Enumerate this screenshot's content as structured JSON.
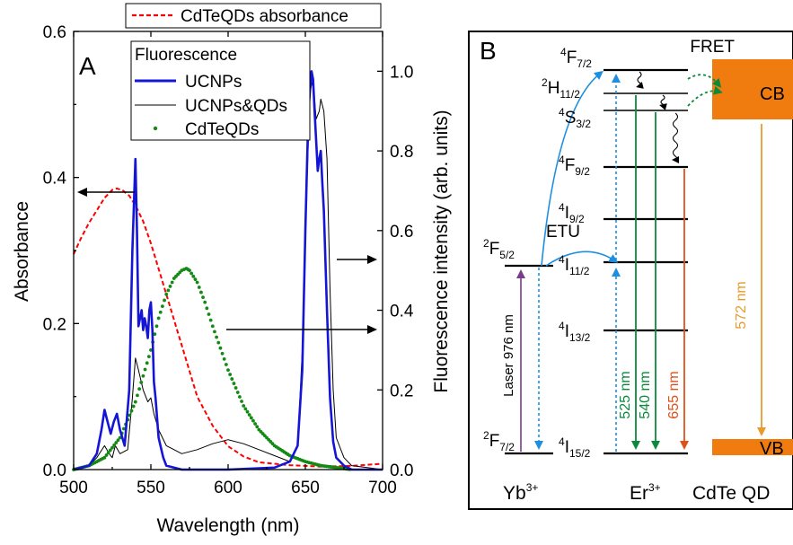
{
  "chart_data": [
    {
      "panel": "A",
      "type": "line",
      "xlabel": "Wavelength (nm)",
      "ylabel_left": "Absorbance",
      "ylabel_right": "Fluorescence intensity (arb. units)",
      "xlim": [
        500,
        700
      ],
      "ylim_left": [
        0,
        0.6
      ],
      "ylim_right": [
        0,
        1.1
      ],
      "x_ticks": [
        "500",
        "550",
        "600",
        "650",
        "700"
      ],
      "yleft_ticks": [
        "0.0",
        "0.2",
        "0.4",
        "0.6"
      ],
      "yright_ticks": [
        "0.0",
        "0.2",
        "0.4",
        "0.6",
        "0.8",
        "1.0"
      ],
      "legend_top": "CdTeQDs absorbance",
      "legend_title": "Fluorescence",
      "series": [
        {
          "name": "CdTeQDs absorbance",
          "axis": "left",
          "color": "#ff0000",
          "style": "dashed",
          "x": [
            500,
            505,
            510,
            515,
            520,
            525,
            528,
            532,
            536,
            540,
            545,
            550,
            555,
            560,
            565,
            570,
            575,
            580,
            590,
            600,
            610,
            620,
            640,
            660,
            680,
            700
          ],
          "y": [
            0.295,
            0.318,
            0.338,
            0.355,
            0.372,
            0.383,
            0.385,
            0.382,
            0.375,
            0.362,
            0.34,
            0.31,
            0.275,
            0.24,
            0.205,
            0.17,
            0.135,
            0.1,
            0.06,
            0.032,
            0.018,
            0.01,
            0.006,
            0.004,
            0.005,
            0.008
          ]
        },
        {
          "name": "UCNPs",
          "axis": "right",
          "color": "#1515d6",
          "style": "solid",
          "x": [
            500,
            510,
            515,
            518,
            520,
            522,
            524,
            526,
            528,
            530,
            533,
            536,
            538,
            540,
            541,
            542,
            544,
            545,
            546,
            547,
            548,
            549,
            550,
            551,
            552,
            553,
            555,
            558,
            560,
            570,
            600,
            630,
            640,
            645,
            648,
            650,
            652,
            654,
            655,
            656,
            658,
            659,
            660,
            661,
            662,
            664,
            666,
            668,
            670,
            675,
            680,
            690,
            700
          ],
          "y": [
            0,
            0.01,
            0.04,
            0.1,
            0.15,
            0.12,
            0.09,
            0.12,
            0.14,
            0.1,
            0.06,
            0.2,
            0.55,
            0.78,
            0.6,
            0.36,
            0.4,
            0.35,
            0.38,
            0.36,
            0.33,
            0.4,
            0.42,
            0.35,
            0.22,
            0.18,
            0.08,
            0.03,
            0.01,
            0,
            0,
            0.005,
            0.02,
            0.06,
            0.25,
            0.6,
            0.9,
            1.0,
            0.98,
            0.9,
            0.75,
            0.78,
            0.8,
            0.72,
            0.65,
            0.4,
            0.18,
            0.07,
            0.03,
            0.01,
            0,
            0,
            0
          ]
        },
        {
          "name": "UCNPs&QDs",
          "axis": "right",
          "color": "#000000",
          "style": "solid",
          "x": [
            500,
            510,
            515,
            520,
            523,
            525,
            527,
            530,
            535,
            538,
            540,
            542,
            545,
            548,
            550,
            552,
            555,
            560,
            565,
            570,
            580,
            590,
            600,
            610,
            620,
            630,
            640,
            645,
            648,
            650,
            653,
            655,
            657,
            659,
            660,
            662,
            664,
            666,
            668,
            670,
            675,
            680,
            690,
            700
          ],
          "y": [
            0,
            0.01,
            0.03,
            0.06,
            0.04,
            0.03,
            0.06,
            0.04,
            0.05,
            0.18,
            0.28,
            0.25,
            0.2,
            0.17,
            0.18,
            0.14,
            0.1,
            0.06,
            0.05,
            0.04,
            0.05,
            0.065,
            0.075,
            0.065,
            0.05,
            0.035,
            0.02,
            0.06,
            0.3,
            0.6,
            0.95,
            0.98,
            0.88,
            0.9,
            0.93,
            0.9,
            0.78,
            0.45,
            0.2,
            0.08,
            0.03,
            0.01,
            0.005,
            0
          ]
        },
        {
          "name": "CdTeQDs",
          "axis": "right",
          "color": "#138a13",
          "style": "dotted",
          "x": [
            500,
            510,
            520,
            530,
            540,
            550,
            555,
            560,
            565,
            570,
            573,
            575,
            580,
            585,
            590,
            600,
            610,
            620,
            630,
            640,
            650,
            660,
            670,
            680
          ],
          "y": [
            0,
            0.01,
            0.03,
            0.08,
            0.17,
            0.3,
            0.38,
            0.44,
            0.48,
            0.5,
            0.505,
            0.5,
            0.47,
            0.42,
            0.36,
            0.25,
            0.16,
            0.1,
            0.06,
            0.035,
            0.02,
            0.01,
            0.005,
            0
          ]
        }
      ]
    },
    {
      "panel": "B",
      "type": "diagram",
      "panel_label": "B",
      "fret_label": "FRET",
      "etu_label": "ETU",
      "ions": [
        "Yb",
        "Er",
        "CdTe QD"
      ],
      "ion_sup": "3+",
      "yb_levels": [
        {
          "main": "2",
          "sym": "F",
          "sub": "5/2"
        },
        {
          "main": "2",
          "sym": "F",
          "sub": "7/2"
        }
      ],
      "er_levels": [
        {
          "main": "4",
          "sym": "F",
          "sub": "7/2"
        },
        {
          "main": "2",
          "sym": "H",
          "sub": "11/2"
        },
        {
          "main": "4",
          "sym": "S",
          "sub": "3/2"
        },
        {
          "main": "4",
          "sym": "F",
          "sub": "9/2"
        },
        {
          "main": "4",
          "sym": "I",
          "sub": "9/2"
        },
        {
          "main": "4",
          "sym": "I",
          "sub": "11/2"
        },
        {
          "main": "4",
          "sym": "I",
          "sub": "13/2"
        },
        {
          "main": "4",
          "sym": "I",
          "sub": "15/2"
        }
      ],
      "cb_label": "CB",
      "vb_label": "VB",
      "transitions": {
        "laser": "Laser 976 nm",
        "green1": "525 nm",
        "green2": "540 nm",
        "red": "655 nm",
        "qd": "572 nm"
      },
      "colors": {
        "laser": "#7b3a8e",
        "etu": "#1e8fe0",
        "green": "#0b8a3c",
        "red": "#e0501a",
        "orange": "#f07c0f",
        "qd_arrow": "#e99a2c"
      }
    }
  ]
}
